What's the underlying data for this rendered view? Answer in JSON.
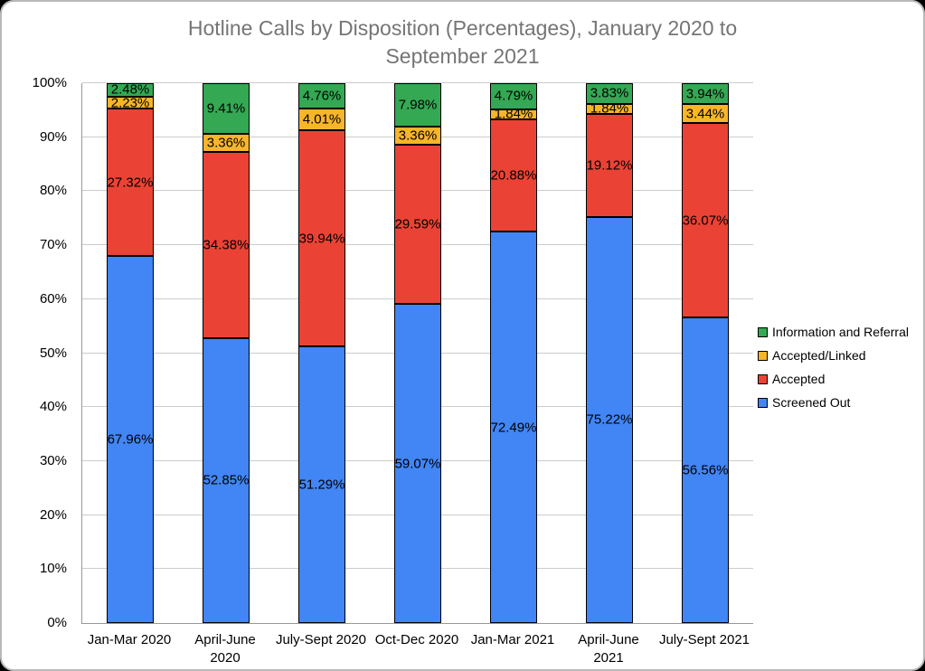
{
  "chart_data": {
    "type": "bar",
    "stacked": true,
    "title": "Hotline Calls by Disposition (Percentages), January 2020 to September 2021",
    "categories": [
      "Jan-Mar 2020",
      "April-June\n2020",
      "July-Sept 2020",
      "Oct-Dec 2020",
      "Jan-Mar 2021",
      "April-June\n2021",
      "July-Sept 2021"
    ],
    "series": [
      {
        "name": "Screened Out",
        "color": "#4285F4",
        "values": [
          67.96,
          52.85,
          51.29,
          59.07,
          72.49,
          75.22,
          56.56
        ]
      },
      {
        "name": "Accepted",
        "color": "#EA4335",
        "values": [
          27.32,
          34.38,
          39.94,
          29.59,
          20.88,
          19.12,
          36.07
        ]
      },
      {
        "name": "Accepted/Linked",
        "color": "#F7B529",
        "values": [
          2.23,
          3.36,
          4.01,
          3.36,
          1.84,
          1.84,
          3.44
        ]
      },
      {
        "name": "Information and Referral",
        "color": "#34A853",
        "values": [
          2.48,
          9.41,
          4.76,
          7.98,
          4.79,
          3.83,
          3.94
        ]
      }
    ],
    "value_label_format": "0.00%",
    "y_axis": {
      "min": 0,
      "max": 100,
      "ticks": [
        "0%",
        "10%",
        "20%",
        "30%",
        "40%",
        "50%",
        "60%",
        "70%",
        "80%",
        "90%",
        "100%"
      ],
      "grid": true
    },
    "legend": {
      "position": "right",
      "order_top_to_bottom": [
        "Information and Referral",
        "Accepted/Linked",
        "Accepted",
        "Screened Out"
      ]
    },
    "style": {
      "title_color": "#757575",
      "grid_color": "#cccccc",
      "axis_color": "#999999",
      "segment_border_color": "#000000",
      "label_color": "#000000"
    }
  }
}
